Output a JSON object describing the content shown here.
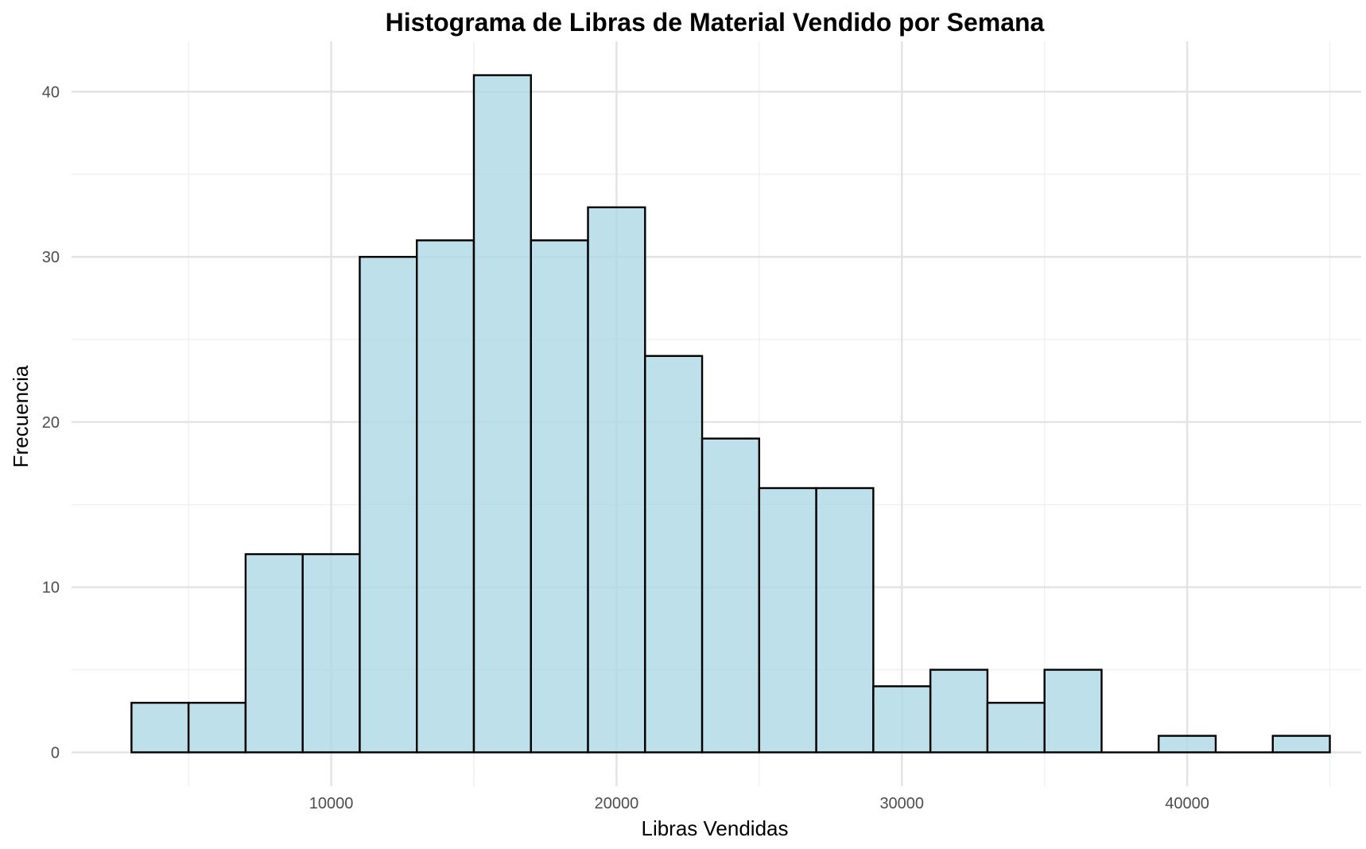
{
  "chart_data": {
    "type": "bar",
    "subtype": "histogram",
    "title": "Histograma de Libras de Material Vendido por Semana",
    "xlabel": "Libras Vendidas",
    "ylabel": "Frecuencia",
    "bin_width": 2000,
    "bins": [
      {
        "start": 3000,
        "end": 5000,
        "count": 3
      },
      {
        "start": 5000,
        "end": 7000,
        "count": 3
      },
      {
        "start": 7000,
        "end": 9000,
        "count": 12
      },
      {
        "start": 9000,
        "end": 11000,
        "count": 12
      },
      {
        "start": 11000,
        "end": 13000,
        "count": 30
      },
      {
        "start": 13000,
        "end": 15000,
        "count": 31
      },
      {
        "start": 15000,
        "end": 17000,
        "count": 41
      },
      {
        "start": 17000,
        "end": 19000,
        "count": 31
      },
      {
        "start": 19000,
        "end": 21000,
        "count": 33
      },
      {
        "start": 21000,
        "end": 23000,
        "count": 24
      },
      {
        "start": 23000,
        "end": 25000,
        "count": 19
      },
      {
        "start": 25000,
        "end": 27000,
        "count": 16
      },
      {
        "start": 27000,
        "end": 29000,
        "count": 16
      },
      {
        "start": 29000,
        "end": 31000,
        "count": 4
      },
      {
        "start": 31000,
        "end": 33000,
        "count": 5
      },
      {
        "start": 33000,
        "end": 35000,
        "count": 3
      },
      {
        "start": 35000,
        "end": 37000,
        "count": 5
      },
      {
        "start": 37000,
        "end": 39000,
        "count": 0
      },
      {
        "start": 39000,
        "end": 41000,
        "count": 1
      },
      {
        "start": 41000,
        "end": 43000,
        "count": 0
      },
      {
        "start": 43000,
        "end": 45000,
        "count": 1
      }
    ],
    "xlim": [
      900,
      46100
    ],
    "ylim": [
      -2.05,
      43.05
    ],
    "x_ticks": [
      10000,
      20000,
      30000,
      40000
    ],
    "x_tick_labels": [
      "10000",
      "20000",
      "30000",
      "40000"
    ],
    "x_minor_ticks": [
      5000,
      15000,
      25000,
      35000,
      45000
    ],
    "y_ticks": [
      0,
      10,
      20,
      30,
      40
    ],
    "y_tick_labels": [
      "0",
      "10",
      "20",
      "30",
      "40"
    ],
    "y_minor_ticks": [
      5,
      15,
      25,
      35
    ],
    "grid": true,
    "legend": "none",
    "colors": {
      "bar_fill": "#add8e6",
      "bar_fill_opacity": 0.8,
      "bar_outline": "#000000",
      "grid_major": "#e3e3e3",
      "grid_minor": "#efefef",
      "background": "#ffffff"
    }
  }
}
